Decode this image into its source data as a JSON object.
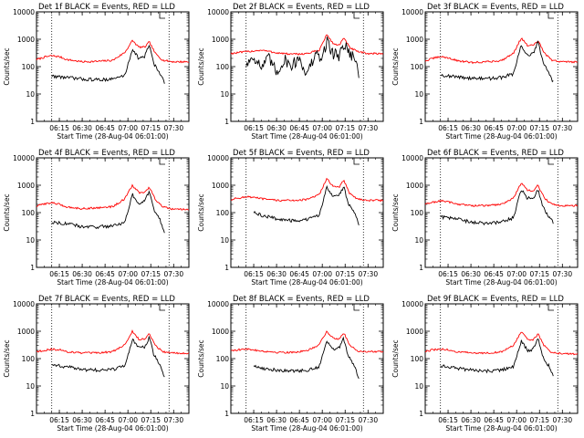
{
  "chart_data": {
    "type": "line",
    "layout": "3x3 grid",
    "y_scale": "log",
    "ylim": [
      1,
      10000
    ],
    "y_ticks": [
      "1",
      "10",
      "100",
      "1000",
      "10000"
    ],
    "ylabel": "Counts/sec",
    "xlabel": "Start Time (28-Aug-04 06:01:00)",
    "x_ticks": [
      "06:15",
      "06:30",
      "06:45",
      "07:00",
      "07:15",
      "07:30"
    ],
    "x_range": [
      "06:00",
      "07:40"
    ],
    "dotted_markers": [
      "06:10",
      "07:27"
    ],
    "colors": {
      "events": "#000000",
      "lld": "#ff0000"
    },
    "panels": [
      {
        "title": "Det 1f BLACK = Events, RED = LLD",
        "series": [
          {
            "name": "Events",
            "color": "#000000",
            "x": [
              "06:10",
              "06:20",
              "06:30",
              "06:40",
              "06:50",
              "06:58",
              "07:03",
              "07:07",
              "07:11",
              "07:14",
              "07:17",
              "07:21",
              "07:24"
            ],
            "y": [
              45,
              40,
              35,
              33,
              35,
              48,
              450,
              200,
              230,
              650,
              130,
              55,
              25
            ]
          },
          {
            "name": "LLD",
            "color": "#ff0000",
            "x": [
              "06:00",
              "06:05",
              "06:10",
              "06:15",
              "06:20",
              "06:30",
              "06:40",
              "06:50",
              "06:58",
              "07:03",
              "07:07",
              "07:11",
              "07:14",
              "07:18",
              "07:23",
              "07:30",
              "07:40"
            ],
            "y": [
              180,
              220,
              250,
              230,
              180,
              150,
              155,
              170,
              330,
              900,
              520,
              510,
              800,
              300,
              170,
              150,
              150
            ]
          }
        ]
      },
      {
        "title": "Det 2f BLACK = Events, RED = LLD",
        "series": [
          {
            "name": "Events",
            "color": "#000000",
            "x": [
              "06:10",
              "06:15",
              "06:20",
              "06:25",
              "06:30",
              "06:35",
              "06:40",
              "06:45",
              "06:50",
              "06:55",
              "07:00",
              "07:03",
              "07:07",
              "07:11",
              "07:14",
              "07:17",
              "07:21",
              "07:24"
            ],
            "y": [
              120,
              250,
              90,
              200,
              60,
              180,
              110,
              210,
              50,
              250,
              200,
              900,
              300,
              250,
              700,
              400,
              200,
              60
            ]
          },
          {
            "name": "LLD",
            "color": "#ff0000",
            "x": [
              "06:00",
              "06:10",
              "06:20",
              "06:30",
              "06:40",
              "06:50",
              "06:58",
              "07:03",
              "07:07",
              "07:11",
              "07:14",
              "07:18",
              "07:23",
              "07:30",
              "07:40"
            ],
            "y": [
              300,
              350,
              400,
              320,
              280,
              300,
              400,
              1500,
              700,
              600,
              1100,
              500,
              350,
              300,
              300
            ]
          }
        ]
      },
      {
        "title": "Det 3f BLACK = Events, RED = LLD",
        "series": [
          {
            "name": "Events",
            "color": "#000000",
            "x": [
              "06:10",
              "06:20",
              "06:30",
              "06:40",
              "06:50",
              "06:58",
              "07:03",
              "07:07",
              "07:11",
              "07:14",
              "07:17",
              "07:21",
              "07:24"
            ],
            "y": [
              50,
              42,
              38,
              36,
              40,
              55,
              600,
              260,
              300,
              800,
              160,
              60,
              28
            ]
          },
          {
            "name": "LLD",
            "color": "#ff0000",
            "x": [
              "06:00",
              "06:05",
              "06:10",
              "06:15",
              "06:20",
              "06:30",
              "06:40",
              "06:50",
              "06:58",
              "07:03",
              "07:07",
              "07:11",
              "07:14",
              "07:18",
              "07:23",
              "07:30",
              "07:40"
            ],
            "y": [
              160,
              200,
              230,
              210,
              170,
              140,
              150,
              165,
              320,
              1100,
              600,
              580,
              900,
              320,
              170,
              150,
              150
            ]
          }
        ]
      },
      {
        "title": "Det 4f BLACK = Events, RED = LLD",
        "series": [
          {
            "name": "Events",
            "color": "#000000",
            "x": [
              "06:10",
              "06:20",
              "06:30",
              "06:40",
              "06:50",
              "06:58",
              "07:03",
              "07:07",
              "07:11",
              "07:14",
              "07:17",
              "07:21",
              "07:24"
            ],
            "y": [
              45,
              40,
              30,
              30,
              33,
              45,
              450,
              220,
              250,
              600,
              130,
              55,
              18
            ]
          },
          {
            "name": "LLD",
            "color": "#ff0000",
            "x": [
              "06:00",
              "06:05",
              "06:10",
              "06:15",
              "06:20",
              "06:30",
              "06:40",
              "06:50",
              "06:58",
              "07:03",
              "07:07",
              "07:11",
              "07:14",
              "07:18",
              "07:23",
              "07:30",
              "07:40"
            ],
            "y": [
              170,
              210,
              230,
              200,
              160,
              140,
              150,
              165,
              320,
              1000,
              550,
              530,
              850,
              300,
              160,
              130,
              130
            ]
          }
        ]
      },
      {
        "title": "Det 5f BLACK = Events, RED = LLD",
        "series": [
          {
            "name": "Events",
            "color": "#000000",
            "x": [
              "06:15",
              "06:20",
              "06:30",
              "06:40",
              "06:50",
              "06:58",
              "07:03",
              "07:07",
              "07:11",
              "07:14",
              "07:17",
              "07:21",
              "07:24"
            ],
            "y": [
              100,
              80,
              60,
              50,
              55,
              80,
              900,
              400,
              420,
              900,
              220,
              110,
              35
            ]
          },
          {
            "name": "LLD",
            "color": "#ff0000",
            "x": [
              "06:00",
              "06:05",
              "06:10",
              "06:15",
              "06:20",
              "06:30",
              "06:40",
              "06:50",
              "06:58",
              "07:03",
              "07:07",
              "07:11",
              "07:14",
              "07:18",
              "07:23",
              "07:30",
              "07:40"
            ],
            "y": [
              300,
              340,
              380,
              360,
              320,
              280,
              280,
              300,
              450,
              1800,
              900,
              850,
              1500,
              500,
              320,
              280,
              280
            ]
          }
        ]
      },
      {
        "title": "Det 6f BLACK = Events, RED = LLD",
        "series": [
          {
            "name": "Events",
            "color": "#000000",
            "x": [
              "06:10",
              "06:20",
              "06:30",
              "06:40",
              "06:50",
              "06:58",
              "07:03",
              "07:07",
              "07:11",
              "07:14",
              "07:17",
              "07:21",
              "07:24"
            ],
            "y": [
              70,
              60,
              45,
              40,
              45,
              65,
              700,
              330,
              350,
              700,
              180,
              70,
              45
            ]
          },
          {
            "name": "LLD",
            "color": "#ff0000",
            "x": [
              "06:00",
              "06:05",
              "06:10",
              "06:15",
              "06:20",
              "06:30",
              "06:40",
              "06:50",
              "06:58",
              "07:03",
              "07:07",
              "07:11",
              "07:14",
              "07:18",
              "07:23",
              "07:30",
              "07:40"
            ],
            "y": [
              200,
              240,
              270,
              250,
              210,
              180,
              180,
              200,
              350,
              1200,
              650,
              620,
              1000,
              350,
              200,
              180,
              180
            ]
          }
        ]
      },
      {
        "title": "Det 7f BLACK = Events, RED = LLD",
        "series": [
          {
            "name": "Events",
            "color": "#000000",
            "x": [
              "06:10",
              "06:20",
              "06:30",
              "06:40",
              "06:50",
              "06:58",
              "07:03",
              "07:07",
              "07:11",
              "07:14",
              "07:17",
              "07:21",
              "07:24"
            ],
            "y": [
              60,
              50,
              40,
              38,
              40,
              55,
              500,
              240,
              260,
              600,
              140,
              60,
              20
            ]
          },
          {
            "name": "LLD",
            "color": "#ff0000",
            "x": [
              "06:00",
              "06:05",
              "06:10",
              "06:15",
              "06:20",
              "06:30",
              "06:40",
              "06:50",
              "06:58",
              "07:03",
              "07:07",
              "07:11",
              "07:14",
              "07:18",
              "07:23",
              "07:30",
              "07:40"
            ],
            "y": [
              180,
              200,
              220,
              210,
              180,
              160,
              160,
              180,
              320,
              1000,
              520,
              500,
              850,
              300,
              180,
              160,
              160
            ]
          }
        ]
      },
      {
        "title": "Det 8f BLACK = Events, RED = LLD",
        "series": [
          {
            "name": "Events",
            "color": "#000000",
            "x": [
              "06:15",
              "06:20",
              "06:30",
              "06:40",
              "06:50",
              "06:58",
              "07:03",
              "07:07",
              "07:11",
              "07:14",
              "07:17",
              "07:21",
              "07:24"
            ],
            "y": [
              55,
              45,
              38,
              35,
              38,
              50,
              450,
              220,
              240,
              550,
              130,
              55,
              20
            ]
          },
          {
            "name": "LLD",
            "color": "#ff0000",
            "x": [
              "06:00",
              "06:05",
              "06:10",
              "06:15",
              "06:20",
              "06:30",
              "06:40",
              "06:50",
              "06:58",
              "07:03",
              "07:07",
              "07:11",
              "07:14",
              "07:18",
              "07:23",
              "07:30",
              "07:40"
            ],
            "y": [
              200,
              210,
              220,
              210,
              190,
              170,
              170,
              190,
              330,
              1000,
              550,
              520,
              900,
              320,
              190,
              180,
              180
            ]
          }
        ]
      },
      {
        "title": "Det 9f BLACK = Events, RED = LLD",
        "series": [
          {
            "name": "Events",
            "color": "#000000",
            "x": [
              "06:10",
              "06:20",
              "06:30",
              "06:40",
              "06:50",
              "06:58",
              "07:03",
              "07:07",
              "07:11",
              "07:14",
              "07:17",
              "07:21",
              "07:24"
            ],
            "y": [
              55,
              45,
              38,
              35,
              38,
              50,
              450,
              200,
              220,
              550,
              120,
              55,
              25
            ]
          },
          {
            "name": "LLD",
            "color": "#ff0000",
            "x": [
              "06:00",
              "06:05",
              "06:10",
              "06:15",
              "06:20",
              "06:30",
              "06:40",
              "06:50",
              "06:58",
              "07:03",
              "07:07",
              "07:11",
              "07:14",
              "07:18",
              "07:23",
              "07:30",
              "07:40"
            ],
            "y": [
              180,
              210,
              220,
              210,
              180,
              160,
              160,
              175,
              310,
              950,
              500,
              480,
              800,
              300,
              170,
              150,
              150
            ]
          }
        ]
      }
    ]
  }
}
